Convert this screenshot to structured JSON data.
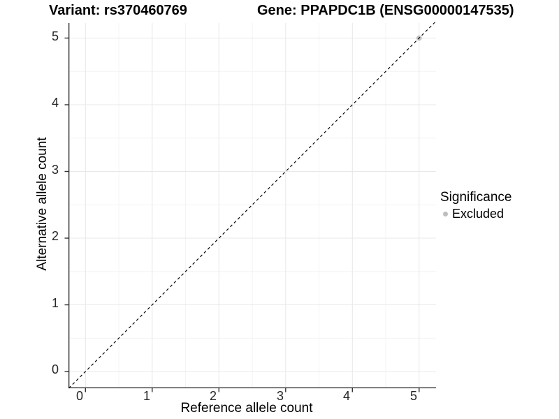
{
  "chart_data": {
    "type": "scatter",
    "titles": {
      "left": "Variant: rs370460769",
      "right": "Gene: PPAPDC1B (ENSG00000147535)"
    },
    "xlabel": "Reference allele count",
    "ylabel": "Alternative allele count",
    "x_ticks": [
      "0",
      "1",
      "2",
      "3",
      "4",
      "5"
    ],
    "y_ticks": [
      "0",
      "1",
      "2",
      "3",
      "4",
      "5"
    ],
    "xlim": [
      -0.25,
      5.25
    ],
    "ylim": [
      -0.25,
      5.25
    ],
    "grid": {
      "major": true,
      "minor": true
    },
    "points": [
      {
        "x": 5,
        "y": 5,
        "series": "Excluded"
      }
    ],
    "reference_line": {
      "kind": "identity",
      "slope": 1,
      "intercept": 0,
      "style": "dashed"
    },
    "legend": {
      "title": "Significance",
      "position": "right",
      "items": [
        {
          "label": "Excluded",
          "marker": "circle"
        }
      ]
    }
  },
  "colors": {
    "excluded_point": "#bdbdbd",
    "axis_line": "#333333",
    "grid_major": "#e8e8e8",
    "grid_minor": "#f3f3f3",
    "reference_line": "#000000",
    "tick_text": "#262626"
  }
}
